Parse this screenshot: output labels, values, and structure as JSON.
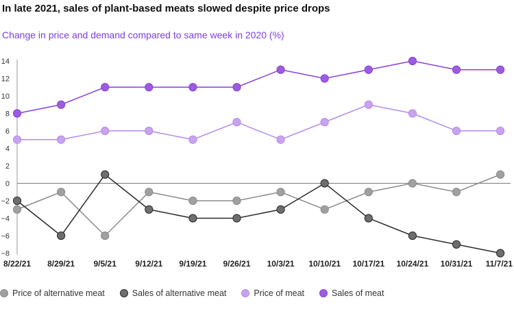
{
  "title": "In late 2021, sales of plant-based meats slowed despite price drops",
  "subtitle": "Change in price and demand compared to same week in 2020 (%)",
  "chart_data": {
    "type": "line",
    "title": "In late 2021, sales of plant-based meats slowed despite price drops",
    "subtitle": "Change in price and demand compared to same week in 2020 (%)",
    "xlabel": "",
    "ylabel": "",
    "categories": [
      "8/22/21",
      "8/29/21",
      "9/5/21",
      "9/12/21",
      "9/19/21",
      "9/26/21",
      "10/3/21",
      "10/10/21",
      "10/17/21",
      "10/24/21",
      "10/31/21",
      "11/7/21"
    ],
    "yticks": [
      14,
      12,
      10,
      8,
      6,
      4,
      2,
      0,
      -2,
      -4,
      -6,
      -8
    ],
    "ylim": [
      -8,
      14
    ],
    "grid": false,
    "legend_position": "bottom",
    "series": [
      {
        "name": "Price of alternative meat",
        "color": "#a0a0a0",
        "stroke": "#8a8a8a",
        "values": [
          -3,
          -1,
          -6,
          -1,
          -2,
          -2,
          -1,
          -3,
          -1,
          0,
          -1,
          1
        ]
      },
      {
        "name": "Sales of alternative meat",
        "color": "#6e6e6e",
        "stroke": "#2a2a2a",
        "values": [
          -2,
          -6,
          1,
          -3,
          -4,
          -4,
          -3,
          0,
          -4,
          -6,
          -7,
          -8
        ]
      },
      {
        "name": "Price of meat",
        "color": "#c8a4ee",
        "stroke": "#b48ae8",
        "values": [
          5,
          5,
          6,
          6,
          5,
          7,
          5,
          7,
          9,
          8,
          6,
          6
        ]
      },
      {
        "name": "Sales of meat",
        "color": "#9c5ce0",
        "stroke": "#8a3fd8",
        "values": [
          8,
          9,
          11,
          11,
          11,
          11,
          13,
          12,
          13,
          14,
          13,
          13
        ]
      }
    ]
  }
}
